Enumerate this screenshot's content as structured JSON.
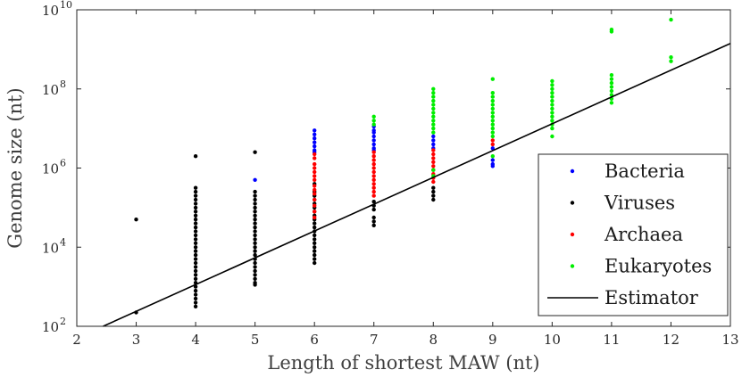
{
  "chart_data": {
    "type": "scatter",
    "title": "",
    "xlabel": "Length of shortest MAW (nt)",
    "ylabel": "Genome size (nt)",
    "xlim": [
      2,
      13
    ],
    "ylim_log10": [
      2,
      10
    ],
    "y_scale": "log",
    "x_ticks": [
      "2",
      "3",
      "4",
      "5",
      "6",
      "7",
      "8",
      "9",
      "10",
      "11",
      "12",
      "13"
    ],
    "y_tick_base": "10",
    "y_tick_exponents": [
      "2",
      "4",
      "6",
      "8",
      "10"
    ],
    "legend_position": "bottom-right",
    "series": [
      {
        "name": "Bacteria",
        "color": "#0000ff",
        "points": [
          [
            5,
            5.7
          ],
          [
            6,
            6.95
          ],
          [
            6,
            6.85
          ],
          [
            6,
            6.75
          ],
          [
            6,
            6.65
          ],
          [
            6,
            6.55
          ],
          [
            6,
            6.45
          ],
          [
            6,
            6.4
          ],
          [
            7,
            7.05
          ],
          [
            7,
            6.95
          ],
          [
            7,
            6.9
          ],
          [
            7,
            6.8
          ],
          [
            7,
            6.7
          ],
          [
            7,
            6.6
          ],
          [
            7,
            6.5
          ],
          [
            7,
            6.45
          ],
          [
            8,
            6.8
          ],
          [
            8,
            6.7
          ],
          [
            8,
            6.6
          ],
          [
            8,
            6.5
          ],
          [
            9,
            6.5
          ],
          [
            9,
            6.2
          ],
          [
            9,
            6.1
          ],
          [
            9,
            6.05
          ]
        ]
      },
      {
        "name": "Viruses",
        "color": "#000000",
        "points": [
          [
            3,
            4.7
          ],
          [
            3,
            2.35
          ],
          [
            4,
            6.3
          ],
          [
            4,
            5.5
          ],
          [
            4,
            5.4
          ],
          [
            4,
            5.3
          ],
          [
            4,
            5.2
          ],
          [
            4,
            5.1
          ],
          [
            4,
            5.0
          ],
          [
            4,
            4.9
          ],
          [
            4,
            4.8
          ],
          [
            4,
            4.7
          ],
          [
            4,
            4.6
          ],
          [
            4,
            4.5
          ],
          [
            4,
            4.4
          ],
          [
            4,
            4.3
          ],
          [
            4,
            4.2
          ],
          [
            4,
            4.1
          ],
          [
            4,
            4.0
          ],
          [
            4,
            3.9
          ],
          [
            4,
            3.8
          ],
          [
            4,
            3.7
          ],
          [
            4,
            3.6
          ],
          [
            4,
            3.5
          ],
          [
            4,
            3.4
          ],
          [
            4,
            3.3
          ],
          [
            4,
            3.2
          ],
          [
            4,
            3.1
          ],
          [
            4,
            3.0
          ],
          [
            4,
            2.9
          ],
          [
            4,
            2.8
          ],
          [
            4,
            2.7
          ],
          [
            4,
            2.6
          ],
          [
            4,
            2.5
          ],
          [
            5,
            6.4
          ],
          [
            5,
            5.4
          ],
          [
            5,
            5.3
          ],
          [
            5,
            5.2
          ],
          [
            5,
            5.1
          ],
          [
            5,
            5.0
          ],
          [
            5,
            4.9
          ],
          [
            5,
            4.8
          ],
          [
            5,
            4.7
          ],
          [
            5,
            4.6
          ],
          [
            5,
            4.5
          ],
          [
            5,
            4.4
          ],
          [
            5,
            4.3
          ],
          [
            5,
            4.2
          ],
          [
            5,
            4.1
          ],
          [
            5,
            4.0
          ],
          [
            5,
            3.9
          ],
          [
            5,
            3.8
          ],
          [
            5,
            3.7
          ],
          [
            5,
            3.6
          ],
          [
            5,
            3.5
          ],
          [
            5,
            3.4
          ],
          [
            5,
            3.3
          ],
          [
            5,
            3.2
          ],
          [
            5,
            3.1
          ],
          [
            5,
            3.05
          ],
          [
            6,
            5.6
          ],
          [
            6,
            5.4
          ],
          [
            6,
            5.3
          ],
          [
            6,
            5.2
          ],
          [
            6,
            5.1
          ],
          [
            6,
            5.0
          ],
          [
            6,
            4.9
          ],
          [
            6,
            4.8
          ],
          [
            6,
            4.7
          ],
          [
            6,
            4.6
          ],
          [
            6,
            4.5
          ],
          [
            6,
            4.4
          ],
          [
            6,
            4.3
          ],
          [
            6,
            4.2
          ],
          [
            6,
            4.1
          ],
          [
            6,
            4.0
          ],
          [
            6,
            3.9
          ],
          [
            6,
            3.8
          ],
          [
            6,
            3.7
          ],
          [
            6,
            3.6
          ],
          [
            7,
            5.15
          ],
          [
            7,
            5.05
          ],
          [
            7,
            4.95
          ],
          [
            7,
            4.75
          ],
          [
            7,
            4.65
          ],
          [
            7,
            4.55
          ],
          [
            8,
            5.5
          ],
          [
            8,
            5.4
          ],
          [
            8,
            5.3
          ],
          [
            8,
            5.2
          ]
        ]
      },
      {
        "name": "Archaea",
        "color": "#ff0000",
        "points": [
          [
            6,
            6.35
          ],
          [
            6,
            6.25
          ],
          [
            6,
            6.1
          ],
          [
            6,
            6.0
          ],
          [
            6,
            5.9
          ],
          [
            6,
            5.8
          ],
          [
            6,
            5.7
          ],
          [
            6,
            5.55
          ],
          [
            6,
            5.45
          ],
          [
            6,
            5.35
          ],
          [
            6,
            5.2
          ],
          [
            6,
            5.05
          ],
          [
            6,
            4.9
          ],
          [
            6,
            4.75
          ],
          [
            7,
            6.4
          ],
          [
            7,
            6.3
          ],
          [
            7,
            6.2
          ],
          [
            7,
            6.1
          ],
          [
            7,
            6.0
          ],
          [
            7,
            5.9
          ],
          [
            7,
            5.8
          ],
          [
            7,
            5.7
          ],
          [
            7,
            5.6
          ],
          [
            7,
            5.5
          ],
          [
            7,
            5.4
          ],
          [
            7,
            5.3
          ],
          [
            8,
            6.45
          ],
          [
            8,
            6.35
          ],
          [
            8,
            6.25
          ],
          [
            8,
            6.15
          ],
          [
            8,
            6.05
          ],
          [
            8,
            5.95
          ],
          [
            8,
            5.85
          ],
          [
            8,
            5.75
          ],
          [
            8,
            5.65
          ],
          [
            9,
            6.6
          ],
          [
            9,
            6.7
          ]
        ]
      },
      {
        "name": "Eukaryotes",
        "color": "#00ee00",
        "points": [
          [
            7,
            7.3
          ],
          [
            7,
            7.2
          ],
          [
            7,
            7.1
          ],
          [
            8,
            8.0
          ],
          [
            8,
            7.9
          ],
          [
            8,
            7.8
          ],
          [
            8,
            7.7
          ],
          [
            8,
            7.6
          ],
          [
            8,
            7.5
          ],
          [
            8,
            7.4
          ],
          [
            8,
            7.3
          ],
          [
            8,
            7.2
          ],
          [
            8,
            7.1
          ],
          [
            8,
            7.0
          ],
          [
            8,
            6.9
          ],
          [
            8,
            5.95
          ],
          [
            8,
            5.8
          ],
          [
            9,
            8.25
          ],
          [
            9,
            7.9
          ],
          [
            9,
            7.8
          ],
          [
            9,
            7.7
          ],
          [
            9,
            7.6
          ],
          [
            9,
            7.5
          ],
          [
            9,
            7.4
          ],
          [
            9,
            7.3
          ],
          [
            9,
            7.2
          ],
          [
            9,
            7.1
          ],
          [
            9,
            7.0
          ],
          [
            9,
            6.9
          ],
          [
            9,
            6.8
          ],
          [
            9,
            6.3
          ],
          [
            10,
            8.2
          ],
          [
            10,
            8.1
          ],
          [
            10,
            8.0
          ],
          [
            10,
            7.9
          ],
          [
            10,
            7.8
          ],
          [
            10,
            7.7
          ],
          [
            10,
            7.6
          ],
          [
            10,
            7.5
          ],
          [
            10,
            7.4
          ],
          [
            10,
            7.3
          ],
          [
            10,
            7.2
          ],
          [
            10,
            7.1
          ],
          [
            10,
            7.0
          ],
          [
            10,
            6.8
          ],
          [
            11,
            9.5
          ],
          [
            11,
            9.45
          ],
          [
            11,
            8.35
          ],
          [
            11,
            8.25
          ],
          [
            11,
            8.15
          ],
          [
            11,
            8.05
          ],
          [
            11,
            7.95
          ],
          [
            11,
            7.85
          ],
          [
            11,
            7.75
          ],
          [
            11,
            7.65
          ],
          [
            12,
            9.75
          ],
          [
            12,
            8.8
          ],
          [
            12,
            8.7
          ]
        ]
      }
    ],
    "estimator": {
      "name": "Estimator",
      "color": "#000000",
      "x": [
        2,
        13
      ],
      "log10_y": [
        1.7,
        9.15
      ]
    }
  }
}
